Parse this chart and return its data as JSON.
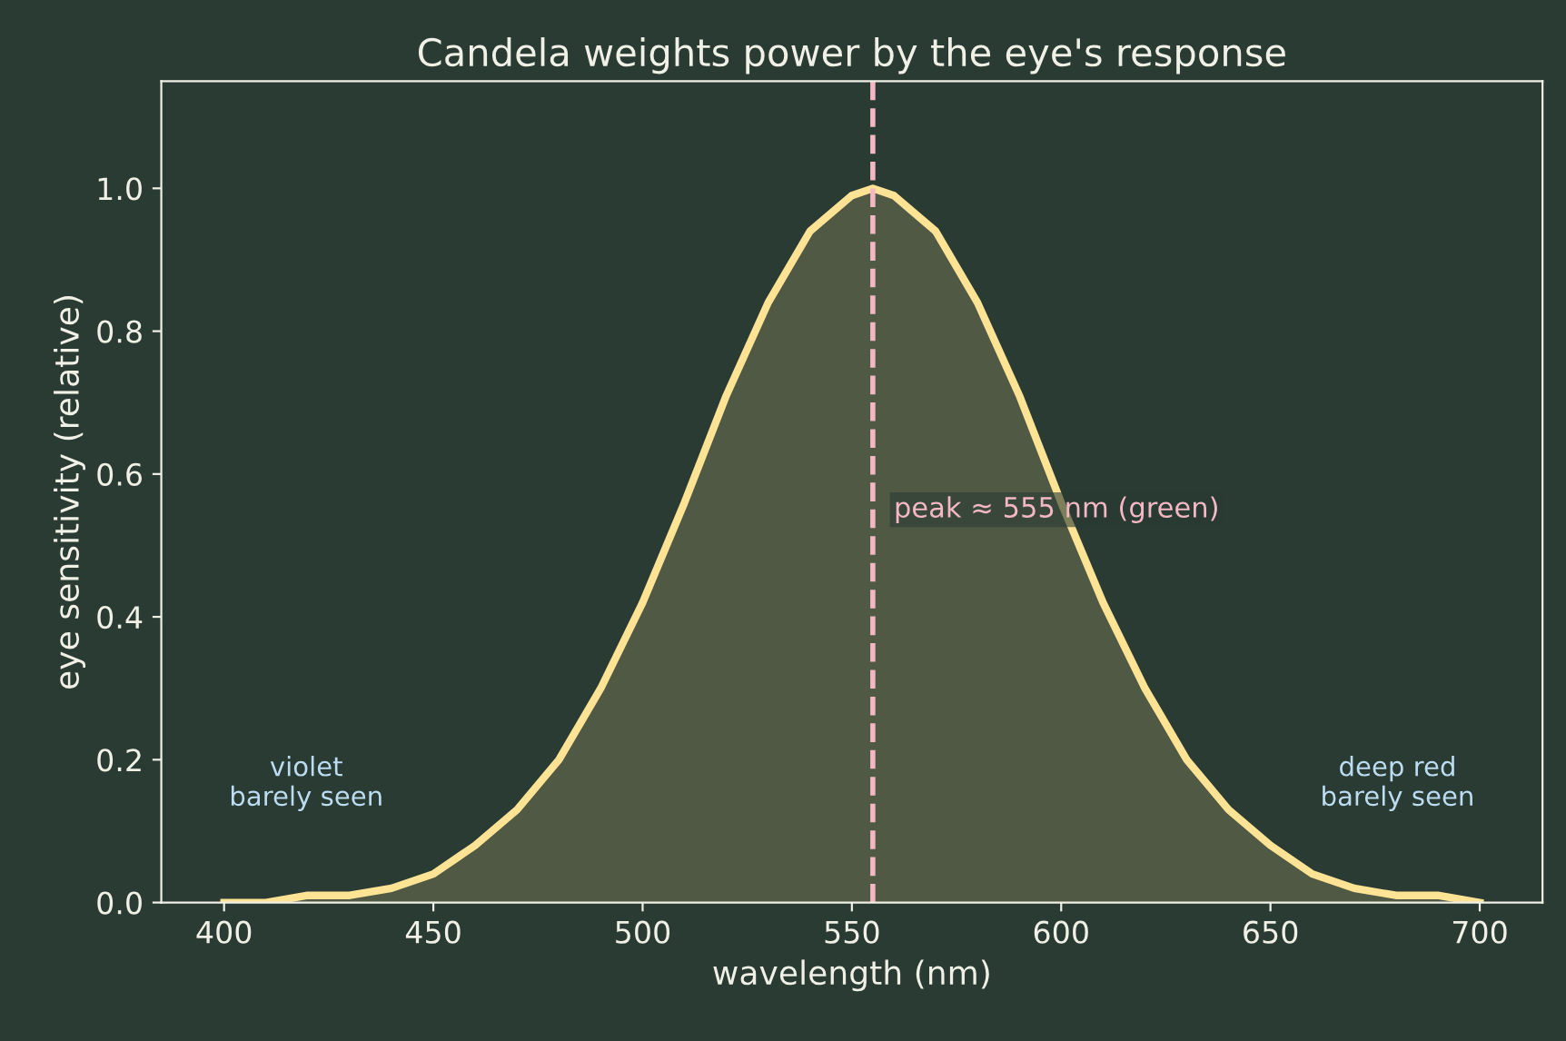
{
  "chart_data": {
    "type": "area",
    "title": "Candela weights power by the eye's response",
    "xlabel": "wavelength (nm)",
    "ylabel": "eye sensitivity (relative)",
    "series": [
      {
        "color": "#ffe394",
        "x": [
          400,
          410,
          420,
          430,
          440,
          450,
          460,
          470,
          480,
          490,
          500,
          510,
          520,
          530,
          540,
          550,
          555,
          560,
          570,
          580,
          590,
          600,
          610,
          620,
          630,
          640,
          650,
          660,
          670,
          680,
          690,
          700
        ],
        "values": [
          0.0,
          0.0,
          0.01,
          0.01,
          0.02,
          0.04,
          0.08,
          0.13,
          0.2,
          0.3,
          0.42,
          0.56,
          0.71,
          0.84,
          0.94,
          0.99,
          1.0,
          0.99,
          0.94,
          0.84,
          0.71,
          0.56,
          0.42,
          0.3,
          0.2,
          0.13,
          0.08,
          0.04,
          0.02,
          0.01,
          0.01,
          0.0
        ]
      }
    ],
    "xlim": [
      385,
      715
    ],
    "ylim": [
      0,
      1.15
    ],
    "xticks": [
      400,
      450,
      500,
      550,
      600,
      650,
      700
    ],
    "yticks": [
      {
        "value": 0,
        "label": "0.0"
      },
      {
        "value": 0.2,
        "label": "0.2"
      },
      {
        "value": 0.4,
        "label": "0.4"
      },
      {
        "value": 0.6,
        "label": "0.6"
      },
      {
        "value": 0.8,
        "label": "0.8"
      },
      {
        "value": 1.0,
        "label": "1.0"
      }
    ],
    "ref_lines": [
      {
        "axis": "x",
        "value": 555,
        "label": "peak ≈ 555 nm (green)",
        "color": "#f4b8c4",
        "line_style": "dashed"
      }
    ],
    "annotations": [
      "violet\nbarely seen",
      "deep red\nbarely seen"
    ],
    "grid": false
  }
}
